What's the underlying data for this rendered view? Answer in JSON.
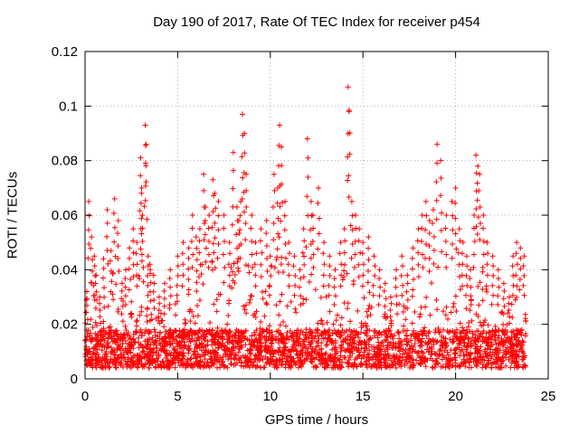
{
  "chart_data": {
    "type": "scatter",
    "title": "Day 190 of 2017, Rate Of TEC Index for receiver p454",
    "xlabel": "GPS time / hours",
    "ylabel": "ROTI / TECUs",
    "xlim": [
      0,
      25
    ],
    "ylim": [
      0,
      0.12
    ],
    "xticks": [
      0,
      5,
      10,
      15,
      20,
      25
    ],
    "xtick_labels": [
      "0",
      "5",
      "10",
      "15",
      "20",
      "25"
    ],
    "yticks": [
      0,
      0.02,
      0.04,
      0.06,
      0.08,
      0.1,
      0.12
    ],
    "ytick_labels": [
      "0",
      "0.02",
      "0.04",
      "0.06",
      "0.08",
      "0.1",
      "0.12"
    ],
    "grid": true,
    "marker": "+",
    "color": "#ff0000",
    "series": [
      {
        "name": "p454",
        "x": [
          0.1,
          0.2,
          0.35,
          0.5,
          0.6,
          0.8,
          1.0,
          1.2,
          1.4,
          1.6,
          1.8,
          2.0,
          2.2,
          2.4,
          2.6,
          2.8,
          3.0,
          3.05,
          3.1,
          3.25,
          3.3,
          3.4,
          3.5,
          3.7,
          4.0,
          4.3,
          4.6,
          5.0,
          5.3,
          5.6,
          5.8,
          6.0,
          6.2,
          6.4,
          6.5,
          6.7,
          6.9,
          7.0,
          7.2,
          7.5,
          7.8,
          8.0,
          8.2,
          8.3,
          8.4,
          8.5,
          8.6,
          8.7,
          9.0,
          9.2,
          9.5,
          9.8,
          10.0,
          10.2,
          10.4,
          10.5,
          10.6,
          10.8,
          11.0,
          11.3,
          11.6,
          11.8,
          12.0,
          12.2,
          12.3,
          12.6,
          12.9,
          13.2,
          13.5,
          13.8,
          14.0,
          14.2,
          14.25,
          14.4,
          14.6,
          14.8,
          15.0,
          15.3,
          15.6,
          15.9,
          16.2,
          16.5,
          16.8,
          17.1,
          17.4,
          17.7,
          18.0,
          18.2,
          18.4,
          18.6,
          18.8,
          19.0,
          19.2,
          19.5,
          19.8,
          20.0,
          20.2,
          20.4,
          20.6,
          20.8,
          21.0,
          21.1,
          21.2,
          21.3,
          21.5,
          21.7,
          22.0,
          22.3,
          22.6,
          22.9,
          23.1,
          23.3,
          23.5,
          23.7
        ],
        "y": [
          0.032,
          0.065,
          0.052,
          0.045,
          0.038,
          0.03,
          0.044,
          0.062,
          0.047,
          0.066,
          0.058,
          0.035,
          0.04,
          0.048,
          0.055,
          0.05,
          0.081,
          0.07,
          0.06,
          0.093,
          0.086,
          0.045,
          0.042,
          0.038,
          0.03,
          0.035,
          0.04,
          0.045,
          0.05,
          0.048,
          0.06,
          0.052,
          0.055,
          0.075,
          0.063,
          0.06,
          0.073,
          0.068,
          0.065,
          0.06,
          0.05,
          0.083,
          0.063,
          0.058,
          0.065,
          0.097,
          0.09,
          0.075,
          0.06,
          0.05,
          0.055,
          0.058,
          0.045,
          0.075,
          0.07,
          0.093,
          0.085,
          0.065,
          0.05,
          0.045,
          0.04,
          0.055,
          0.088,
          0.065,
          0.06,
          0.07,
          0.05,
          0.045,
          0.04,
          0.05,
          0.055,
          0.107,
          0.098,
          0.065,
          0.06,
          0.055,
          0.05,
          0.052,
          0.045,
          0.04,
          0.035,
          0.03,
          0.04,
          0.045,
          0.038,
          0.048,
          0.055,
          0.06,
          0.065,
          0.058,
          0.062,
          0.086,
          0.08,
          0.06,
          0.065,
          0.07,
          0.055,
          0.05,
          0.045,
          0.04,
          0.06,
          0.082,
          0.078,
          0.075,
          0.06,
          0.05,
          0.045,
          0.04,
          0.035,
          0.03,
          0.045,
          0.05,
          0.048,
          0.045
        ]
      }
    ]
  }
}
